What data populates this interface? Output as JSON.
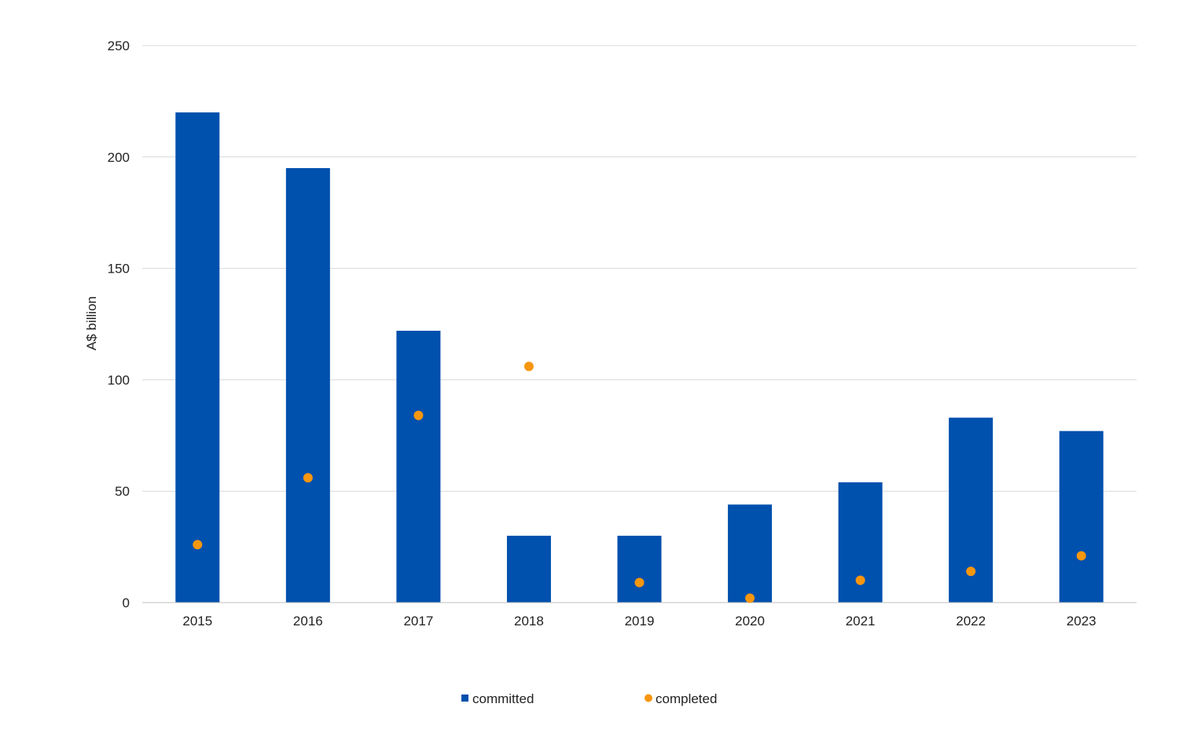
{
  "chart_data": {
    "type": "bar",
    "categories": [
      "2015",
      "2016",
      "2017",
      "2018",
      "2019",
      "2020",
      "2021",
      "2022",
      "2023"
    ],
    "series": [
      {
        "name": "committed",
        "type": "bar",
        "color": "#0050ae",
        "values": [
          220,
          195,
          122,
          30,
          30,
          44,
          54,
          83,
          77
        ]
      },
      {
        "name": "completed",
        "type": "scatter",
        "color": "#f7960f",
        "values": [
          26,
          56,
          84,
          106,
          9,
          2,
          10,
          14,
          21
        ]
      }
    ],
    "title": "",
    "xlabel": "",
    "ylabel": "A$ billion",
    "ylim": [
      0,
      250
    ],
    "yticks": [
      0,
      50,
      100,
      150,
      200,
      250
    ],
    "grid": true,
    "legend": "bottom-center"
  }
}
